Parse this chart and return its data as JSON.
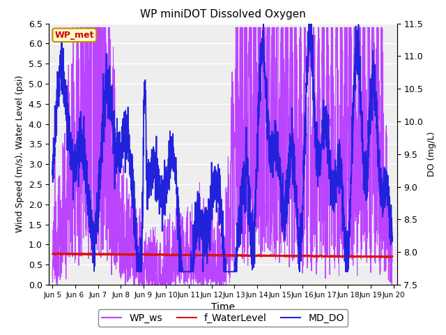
{
  "title": "WP miniDOT Dissolved Oxygen",
  "xlabel": "Time",
  "ylabel_left": "Wind Speed (m/s), Water Level (psi)",
  "ylabel_right": "DO (mg/L)",
  "xlim_days": [
    4.85,
    20.15
  ],
  "ylim_left": [
    0.0,
    6.5
  ],
  "ylim_right": [
    7.5,
    11.5
  ],
  "legend_labels": [
    "WP_ws",
    "f_WaterLevel",
    "MD_DO"
  ],
  "annotation_text": "WP_met",
  "annotation_color": "#CC0000",
  "annotation_bg": "#FFFFCC",
  "annotation_edge": "#CC8800",
  "ws_color": "#BB44FF",
  "wl_color": "#DD1111",
  "do_color": "#2222DD",
  "bg_color": "#FFFFFF",
  "plot_bg": "#EEEEEE",
  "grid_color": "#FFFFFF",
  "xtick_labels": [
    "Jun 5",
    "Jun 6",
    "Jun 7",
    "Jun 8",
    "Jun 9",
    "Jun 10",
    "Jun 11",
    "Jun 12",
    "Jun 13",
    "Jun 14",
    "Jun 15",
    "Jun 16",
    "Jun 17",
    "Jun 18",
    "Jun 19",
    "Jun 20"
  ],
  "xtick_positions": [
    5,
    6,
    7,
    8,
    9,
    10,
    11,
    12,
    13,
    14,
    15,
    16,
    17,
    18,
    19,
    20
  ],
  "yticks_left": [
    0.0,
    0.5,
    1.0,
    1.5,
    2.0,
    2.5,
    3.0,
    3.5,
    4.0,
    4.5,
    5.0,
    5.5,
    6.0,
    6.5
  ],
  "yticks_right": [
    7.5,
    8.0,
    8.5,
    9.0,
    9.5,
    10.0,
    10.5,
    11.0,
    11.5
  ]
}
